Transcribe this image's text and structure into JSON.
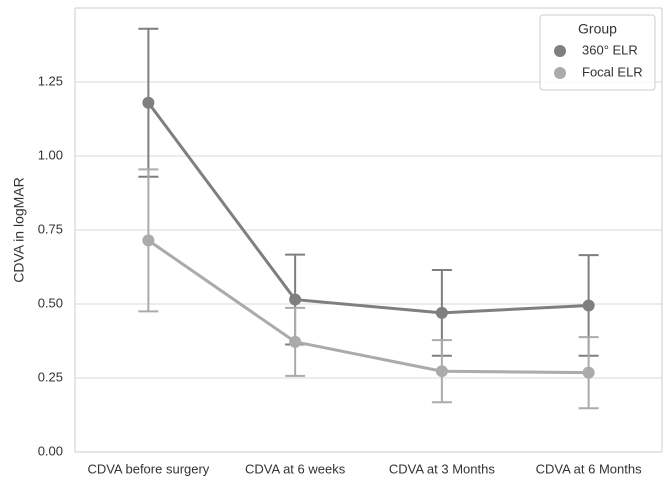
{
  "chart_data": {
    "type": "line",
    "y_label": "CDVA in logMAR",
    "categories": [
      "CDVA before surgery",
      "CDVA at 6 weeks",
      "CDVA at 3 Months",
      "CDVA at 6 Months"
    ],
    "series": [
      {
        "name": "360° ELR",
        "color": "#7f7f7f",
        "values": [
          1.18,
          0.515,
          0.47,
          0.495
        ],
        "errors": [
          0.25,
          0.152,
          0.145,
          0.17
        ]
      },
      {
        "name": "Focal ELR",
        "color": "#ababab",
        "values": [
          0.715,
          0.372,
          0.273,
          0.268
        ],
        "errors": [
          0.24,
          0.115,
          0.105,
          0.12
        ]
      }
    ],
    "ylim": [
      0,
      1.5
    ],
    "yticks": [
      {
        "value": 0,
        "label": "0.00"
      },
      {
        "value": 0.25,
        "label": "0.25"
      },
      {
        "value": 0.5,
        "label": "0.50"
      },
      {
        "value": 0.75,
        "label": "0.75"
      },
      {
        "value": 1,
        "label": "1.00"
      },
      {
        "value": 1.25,
        "label": "1.25"
      }
    ],
    "grid": true,
    "legend_title": "Group",
    "legend_position": "upper right"
  }
}
